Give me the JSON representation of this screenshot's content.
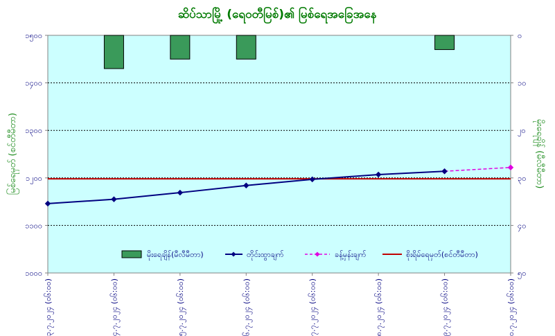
{
  "chart_data": {
    "type": "bar+line",
    "title": "ဆိပ်သာမြို့ (ရေဝတီမြစ်)၏ မြစ်ရေအခြေအနေ",
    "ylabel_left": "မြစ်ရေမှတ် (စင်တီမီတာ)",
    "ylabel_right": "မိုးရေချိန် (မီလီမီတာ)",
    "left_axis": {
      "min": 1000,
      "max": 1500,
      "ticks": [
        "၁၀၀၀",
        "၁၁၀၀",
        "၁၂၀၀",
        "၁၃၀၀",
        "၁၄၀၀",
        "၁၅၀၀"
      ]
    },
    "right_axis": {
      "min": 0,
      "max": 50,
      "inverted": true,
      "ticks": [
        "၀",
        "၁၀",
        "၂၀",
        "၃၀",
        "၄၀",
        "၅၀"
      ]
    },
    "categories": [
      "၁၃.၇.၂၀၂၄ (၀၆:၀၀)",
      "၁၄.၇.၂၀၂၄ (၀၆:၀၀)",
      "၁၅.၇.၂၀၂၄ (၀၆:၀၀)",
      "၁၆.၇.၂၀၂၄ (၀၆:၀၀)",
      "၁၇.၇.၂၀၂၄ (၀၆:၀၀)",
      "၁၈.၇.၂၀၂၄ (၀၆:၀၀)",
      "၁၉.၇.၂၀၂၄ (၀၆:၀၀)",
      "၂၀.၇.၂၀၂၄ (၀၆:၀၀)"
    ],
    "series": [
      {
        "name": "မိုးရေချိန်(မီလီမီတာ)",
        "kind": "bar",
        "axis": "right",
        "color": "#3a9a5a",
        "values": [
          null,
          7,
          5,
          5,
          null,
          null,
          3,
          null
        ]
      },
      {
        "name": "တိုင်းထွာချက်",
        "kind": "line",
        "axis": "left",
        "color": "#000080",
        "values": [
          1146,
          1155,
          1169,
          1184,
          1197,
          1207,
          1214,
          null
        ]
      },
      {
        "name": "ခန့်မှန်းချက်",
        "kind": "dashed-line",
        "axis": "left",
        "color": "#e000e0",
        "values": [
          null,
          null,
          null,
          null,
          null,
          null,
          1214,
          1222
        ]
      },
      {
        "name": "စိုးရိမ်ရေမှတ်(စင်တီမီတာ)",
        "kind": "hline",
        "axis": "left",
        "color": "#c00000",
        "value": 1198
      }
    ],
    "grid": true,
    "legend": "bottom"
  }
}
